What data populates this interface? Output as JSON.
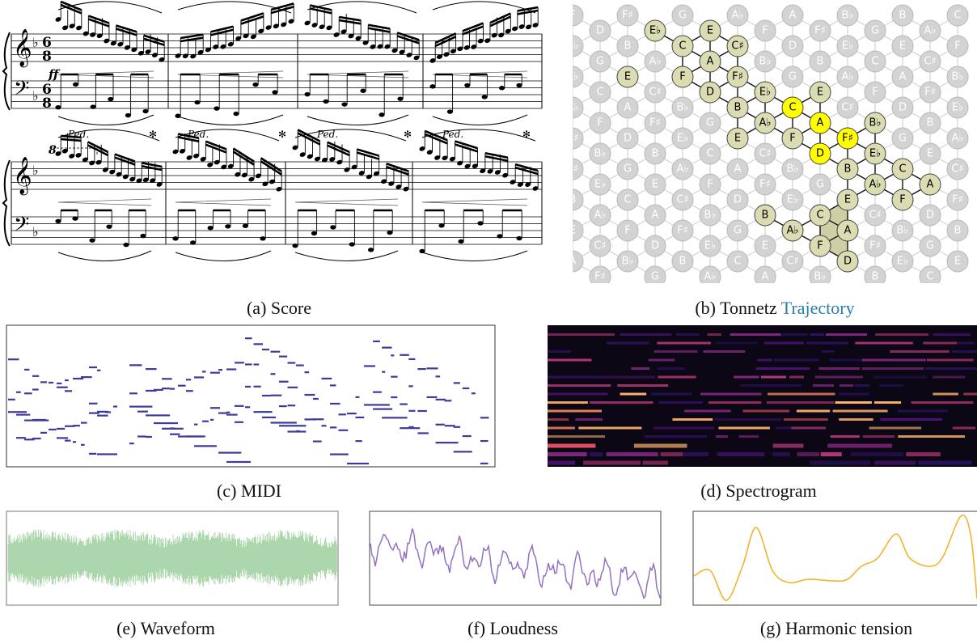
{
  "captions": {
    "score": "(a) Score",
    "tonnetz": "(b) Tonnetz",
    "tonnetz_link": "Trajectory",
    "midi": "(c) MIDI",
    "spectrogram": "(d) Spectrogram",
    "waveform": "(e) Waveform",
    "loudness": "(f) Loudness",
    "tension": "(g) Harmonic tension"
  },
  "score": {
    "clefs": [
      "𝄞",
      "𝄢"
    ],
    "key": "♭",
    "time": [
      "6",
      "8"
    ],
    "dynamic": "ff",
    "ottava": "8",
    "pedal_marks": [
      "Ped.",
      "✻",
      "Ped.",
      "✻",
      "Ped.",
      "✻",
      "Ped.",
      "✻"
    ]
  },
  "tonnetz": {
    "columns": [
      [
        "F",
        "B♭",
        "E♭",
        "A♭",
        "C♯",
        "F♯",
        "B",
        "E",
        "A"
      ],
      [
        "D",
        "G",
        "C",
        "F",
        "B♭",
        "E♭",
        "A♭",
        "C♯",
        "F♯"
      ],
      [
        "F♯",
        "B",
        "E",
        "A",
        "D",
        "G",
        "C",
        "F",
        "B♭"
      ],
      [
        "E♭",
        "A♭",
        "C♯",
        "F♯",
        "B",
        "E",
        "A",
        "D",
        "G"
      ],
      [
        "G",
        "C",
        "F",
        "B♭",
        "E♭",
        "A♭",
        "C♯",
        "F♯",
        "B"
      ],
      [
        "E",
        "A",
        "D",
        "G",
        "C",
        "F",
        "B♭",
        "E♭",
        "A♭"
      ],
      [
        "A♭",
        "C♯",
        "F♯",
        "B",
        "E",
        "A",
        "D",
        "G",
        "C"
      ],
      [
        "F",
        "B♭",
        "E♭",
        "A♭",
        "C♯",
        "F♯",
        "B",
        "E",
        "A"
      ],
      [
        "A",
        "D",
        "G",
        "C",
        "F",
        "B♭",
        "E♭",
        "A♭",
        "C♯"
      ],
      [
        "F♯",
        "B",
        "E",
        "A",
        "D",
        "G",
        "C",
        "F",
        "B♭"
      ],
      [
        "B♭",
        "E♭",
        "A♭",
        "C♯",
        "F♯",
        "B",
        "E",
        "A",
        "D"
      ],
      [
        "G",
        "C",
        "F",
        "B♭",
        "E♭",
        "A♭",
        "C♯",
        "F♯",
        "B"
      ],
      [
        "B",
        "E",
        "A",
        "D",
        "G",
        "C",
        "F",
        "B♭",
        "E♭"
      ],
      [
        "A♭",
        "C♯",
        "F♯",
        "B",
        "E",
        "A",
        "D",
        "G",
        "C"
      ],
      [
        "C",
        "F",
        "B♭",
        "E♭",
        "A♭",
        "C♯",
        "F♯",
        "B",
        "E"
      ]
    ]
  }
}
